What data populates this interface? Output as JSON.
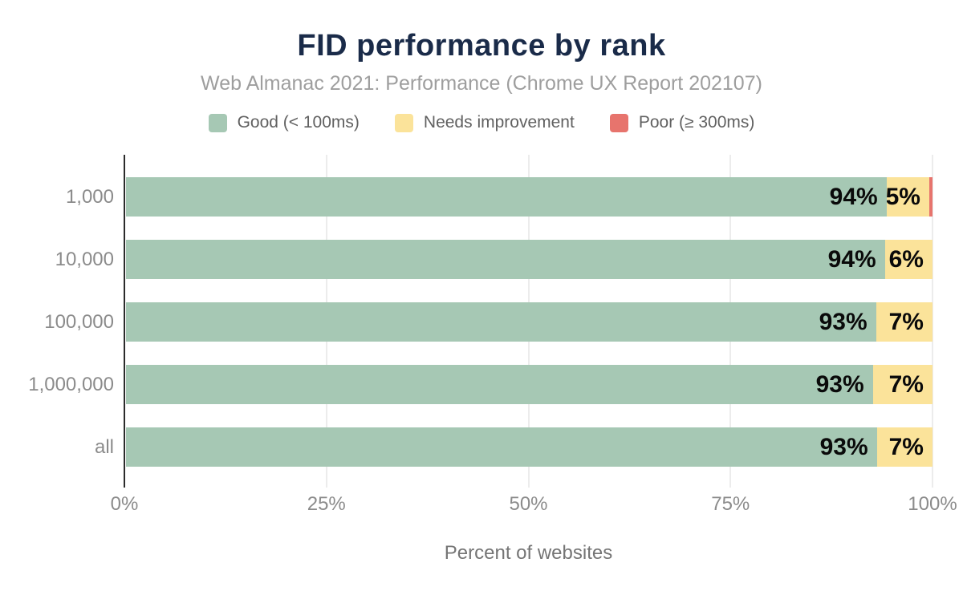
{
  "title": "FID performance by rank",
  "subtitle": "Web Almanac 2021: Performance (Chrome UX Report 202107)",
  "legend": [
    {
      "label": "Good (< 100ms)",
      "color": "#a6c8b4"
    },
    {
      "label": "Needs improvement",
      "color": "#fbe39a"
    },
    {
      "label": "Poor (≥ 300ms)",
      "color": "#e7746d"
    }
  ],
  "colors": {
    "title": "#1a2b49",
    "subtitle": "#9e9e9e",
    "good": "#a6c8b4",
    "needs_improvement": "#fbe39a",
    "poor": "#e7746d",
    "axis_line": "#2b2b2b",
    "gridline": "#ececec",
    "tick_text": "#8b8b8b"
  },
  "chart_data": {
    "type": "bar",
    "orientation": "horizontal",
    "stacked": true,
    "title": "FID performance by rank",
    "subtitle": "Web Almanac 2021: Performance (Chrome UX Report 202107)",
    "xlabel": "Percent of websites",
    "ylabel": "",
    "xlim": [
      0,
      100
    ],
    "xticks": [
      0,
      25,
      50,
      75,
      100
    ],
    "xtick_labels": [
      "0%",
      "25%",
      "50%",
      "75%",
      "100%"
    ],
    "grid": "vertical",
    "legend_position": "top",
    "categories": [
      "1,000",
      "10,000",
      "100,000",
      "1,000,000",
      "all"
    ],
    "series": [
      {
        "name": "Good (< 100ms)",
        "color": "#a6c8b4",
        "values": [
          94,
          94,
          93,
          93,
          93
        ]
      },
      {
        "name": "Needs improvement",
        "color": "#fbe39a",
        "values": [
          5,
          6,
          7,
          7,
          7
        ]
      },
      {
        "name": "Poor (≥ 300ms)",
        "color": "#e7746d",
        "values": [
          1,
          0,
          0,
          0,
          0
        ]
      }
    ],
    "value_labels": [
      [
        "94%",
        "5%"
      ],
      [
        "94%",
        "6%"
      ],
      [
        "93%",
        "7%"
      ],
      [
        "93%",
        "7%"
      ],
      [
        "93%",
        "7%"
      ]
    ],
    "render_widths": [
      [
        94.3,
        5.3,
        0.4
      ],
      [
        94.1,
        5.9,
        0
      ],
      [
        93.0,
        7.0,
        0
      ],
      [
        92.6,
        7.4,
        0
      ],
      [
        93.1,
        6.9,
        0
      ]
    ]
  }
}
